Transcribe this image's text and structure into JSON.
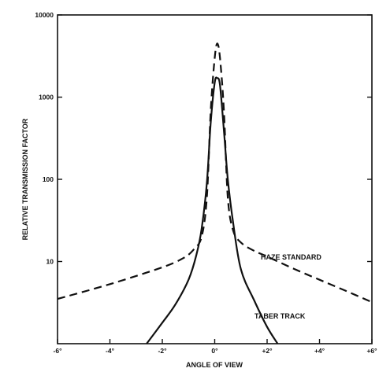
{
  "chart_data": {
    "type": "line",
    "title": "",
    "xlabel": "ANGLE OF VIEW",
    "ylabel": "RELATIVE TRANSMISSION FACTOR",
    "y_scale": "log",
    "xlim": [
      -6,
      6
    ],
    "ylim": [
      1,
      10000
    ],
    "grid": false,
    "legend": "none",
    "x_ticks": [
      -6,
      -4,
      -2,
      0,
      2,
      4,
      6
    ],
    "x_tick_labels": [
      "-6°",
      "-4°",
      "-2°",
      "0°",
      "+2°",
      "+4°",
      "+6°"
    ],
    "y_ticks": [
      10,
      100,
      1000,
      10000
    ],
    "y_tick_labels": [
      "10",
      "100",
      "1000",
      "10000"
    ],
    "series": [
      {
        "name": "HAZE STANDARD",
        "style": "dashed",
        "color": "#111111",
        "x": [
          -6.0,
          -4.0,
          -2.0,
          -1.2,
          -0.8,
          -0.5,
          -0.3,
          -0.15,
          0.0,
          0.1,
          0.2,
          0.35,
          0.5,
          0.7,
          1.0,
          1.5,
          2.0,
          3.0,
          4.0,
          5.0,
          6.0
        ],
        "y": [
          3.5,
          5.3,
          8.5,
          11,
          14,
          20,
          60,
          700,
          3000,
          4500,
          3000,
          700,
          60,
          24,
          17,
          13.5,
          11.5,
          8.2,
          6,
          4.4,
          3.2
        ]
      },
      {
        "name": "TABER TRACK",
        "style": "solid",
        "color": "#111111",
        "x": [
          -2.6,
          -2.0,
          -1.5,
          -1.0,
          -0.7,
          -0.5,
          -0.3,
          -0.15,
          0.0,
          0.1,
          0.2,
          0.35,
          0.5,
          0.7,
          1.0,
          1.5,
          2.0,
          2.4
        ],
        "y": [
          1,
          1.8,
          3,
          6,
          12,
          25,
          90,
          500,
          1500,
          1700,
          1400,
          400,
          100,
          30,
          8,
          3.4,
          1.6,
          1
        ]
      }
    ]
  }
}
